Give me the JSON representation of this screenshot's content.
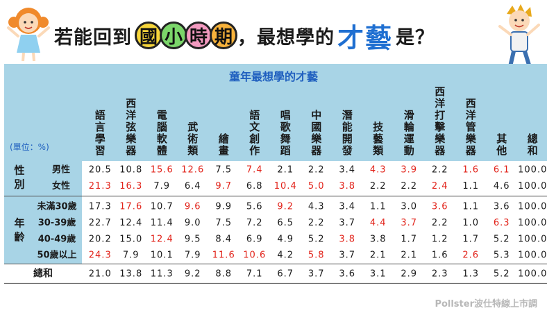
{
  "title": {
    "prefix": "若能回到",
    "badges": [
      "國",
      "小",
      "時",
      "期"
    ],
    "middle": "，最想學的",
    "highlight": "才藝",
    "suffix": "是？"
  },
  "footer": "Pollster波仕特線上市調",
  "colors": {
    "header_bg": "#a8d4e6",
    "rowhead_bg": "#a8d4e6",
    "red": "#e2231a",
    "text": "#1a1a1a",
    "title_blue": "#1f6fd1",
    "table_title": "#1f5fbf"
  },
  "chart_data": {
    "type": "table",
    "title": "童年最想學的才藝",
    "unit_label": "(單位：%)",
    "columns": [
      "語言學習",
      "西洋弦樂器",
      "電腦軟體",
      "武術類",
      "繪畫",
      "語文創作",
      "唱歌舞蹈",
      "中國樂器",
      "潛能開發",
      "技藝類",
      "滑輪運動",
      "西洋打擊樂器",
      "西洋管樂器",
      "其他",
      "總和"
    ],
    "groups": [
      {
        "name": "性別",
        "rows": [
          {
            "label": "男性",
            "values": [
              "20.5",
              "10.8",
              "15.6",
              "12.6",
              "7.5",
              "7.4",
              "2.1",
              "2.2",
              "3.4",
              "4.3",
              "3.9",
              "2.2",
              "1.6",
              "6.1",
              "100.0"
            ],
            "red": [
              2,
              3,
              5,
              9,
              10,
              12,
              13
            ]
          },
          {
            "label": "女性",
            "values": [
              "21.3",
              "16.3",
              "7.9",
              "6.4",
              "9.7",
              "6.8",
              "10.4",
              "5.0",
              "3.8",
              "2.2",
              "2.2",
              "2.4",
              "1.1",
              "4.6",
              "100.0"
            ],
            "red": [
              0,
              1,
              4,
              6,
              7,
              8,
              11
            ]
          }
        ]
      },
      {
        "name": "年齡",
        "rows": [
          {
            "label": "未滿30歲",
            "values": [
              "17.3",
              "17.6",
              "10.7",
              "9.6",
              "9.9",
              "5.6",
              "9.2",
              "4.3",
              "3.4",
              "1.1",
              "3.0",
              "3.6",
              "1.1",
              "3.6",
              "100.0"
            ],
            "red": [
              1,
              3,
              6,
              11
            ]
          },
          {
            "label": "30-39歲",
            "values": [
              "22.7",
              "12.4",
              "11.4",
              "9.0",
              "7.5",
              "7.2",
              "6.5",
              "2.2",
              "3.7",
              "4.4",
              "3.7",
              "2.2",
              "1.0",
              "6.3",
              "100.0"
            ],
            "red": [
              9,
              10,
              13
            ]
          },
          {
            "label": "40-49歲",
            "values": [
              "20.2",
              "15.0",
              "12.4",
              "9.5",
              "8.4",
              "6.9",
              "4.9",
              "5.2",
              "3.8",
              "3.8",
              "1.7",
              "1.2",
              "1.7",
              "5.2",
              "100.0"
            ],
            "red": [
              2,
              8
            ]
          },
          {
            "label": "50歲以上",
            "values": [
              "24.3",
              "7.9",
              "10.1",
              "7.9",
              "11.6",
              "10.6",
              "4.2",
              "5.8",
              "3.7",
              "2.1",
              "2.1",
              "1.6",
              "2.6",
              "5.3",
              "100.0"
            ],
            "red": [
              0,
              4,
              5,
              7,
              12
            ]
          }
        ]
      }
    ],
    "total": {
      "label": "總和",
      "values": [
        "21.0",
        "13.8",
        "11.3",
        "9.2",
        "8.8",
        "7.1",
        "6.7",
        "3.7",
        "3.6",
        "3.1",
        "2.9",
        "2.3",
        "1.3",
        "5.2",
        "100.0"
      ]
    }
  }
}
